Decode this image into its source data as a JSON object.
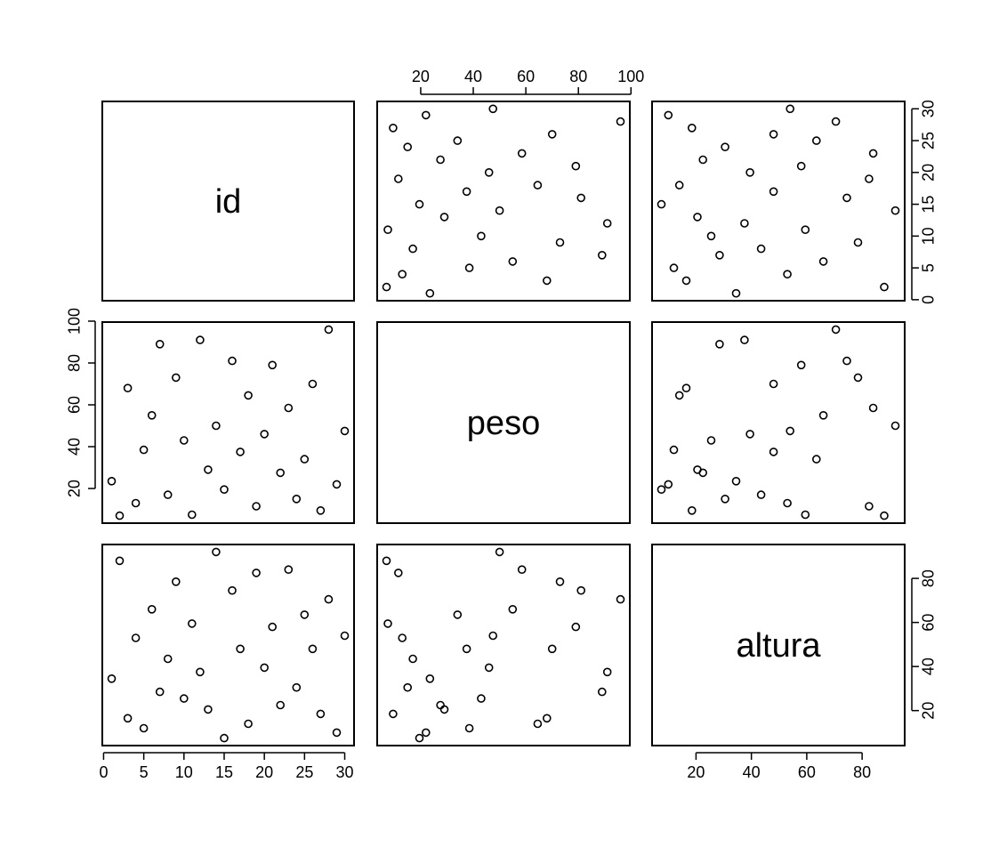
{
  "chart_data": {
    "type": "scatter",
    "variables": [
      "id",
      "peso",
      "altura"
    ],
    "observations": [
      [
        1,
        23.5,
        34.5
      ],
      [
        2,
        7,
        88
      ],
      [
        3,
        68,
        16.5
      ],
      [
        4,
        13,
        53
      ],
      [
        5,
        38.5,
        12
      ],
      [
        6,
        55,
        66
      ],
      [
        7,
        89,
        28.5
      ],
      [
        8,
        17,
        43.5
      ],
      [
        9,
        73,
        78.5
      ],
      [
        10,
        43,
        25.5
      ],
      [
        11,
        7.5,
        59.5
      ],
      [
        12,
        91,
        37.5
      ],
      [
        13,
        29,
        20.5
      ],
      [
        14,
        50,
        92
      ],
      [
        15,
        19.5,
        7.5
      ],
      [
        16,
        81,
        74.5
      ],
      [
        17,
        37.5,
        48
      ],
      [
        18,
        64.5,
        14
      ],
      [
        19,
        11.5,
        82.5
      ],
      [
        20,
        46,
        39.5
      ],
      [
        21,
        79,
        58
      ],
      [
        22,
        27.5,
        22.5
      ],
      [
        23,
        58.5,
        84
      ],
      [
        24,
        15,
        30.5
      ],
      [
        25,
        34,
        63.5
      ],
      [
        26,
        70,
        48
      ],
      [
        27,
        9.5,
        18.5
      ],
      [
        28,
        96,
        70.5
      ],
      [
        29,
        22,
        10
      ],
      [
        30,
        47.5,
        54
      ]
    ],
    "ranges": {
      "id": [
        1,
        30
      ],
      "peso": [
        7,
        96
      ],
      "altura": [
        7.5,
        92
      ]
    },
    "ticks": {
      "id": {
        "values": [
          0,
          5,
          10,
          15,
          20,
          25,
          30
        ],
        "labels": [
          "0",
          "5",
          "10",
          "15",
          "20",
          "25",
          "30"
        ]
      },
      "peso": {
        "values": [
          20,
          40,
          60,
          80,
          100
        ],
        "labels": [
          "20",
          "40",
          "60",
          "80",
          "100"
        ]
      },
      "altura": {
        "values": [
          20,
          40,
          60,
          80
        ],
        "labels": [
          "20",
          "40",
          "60",
          "80"
        ]
      }
    },
    "axes": {
      "bottom": "id",
      "top": "peso",
      "right": [
        "id",
        "altura"
      ],
      "left": "peso",
      "bottom_2": "altura"
    },
    "grid": false,
    "legend": "none"
  }
}
